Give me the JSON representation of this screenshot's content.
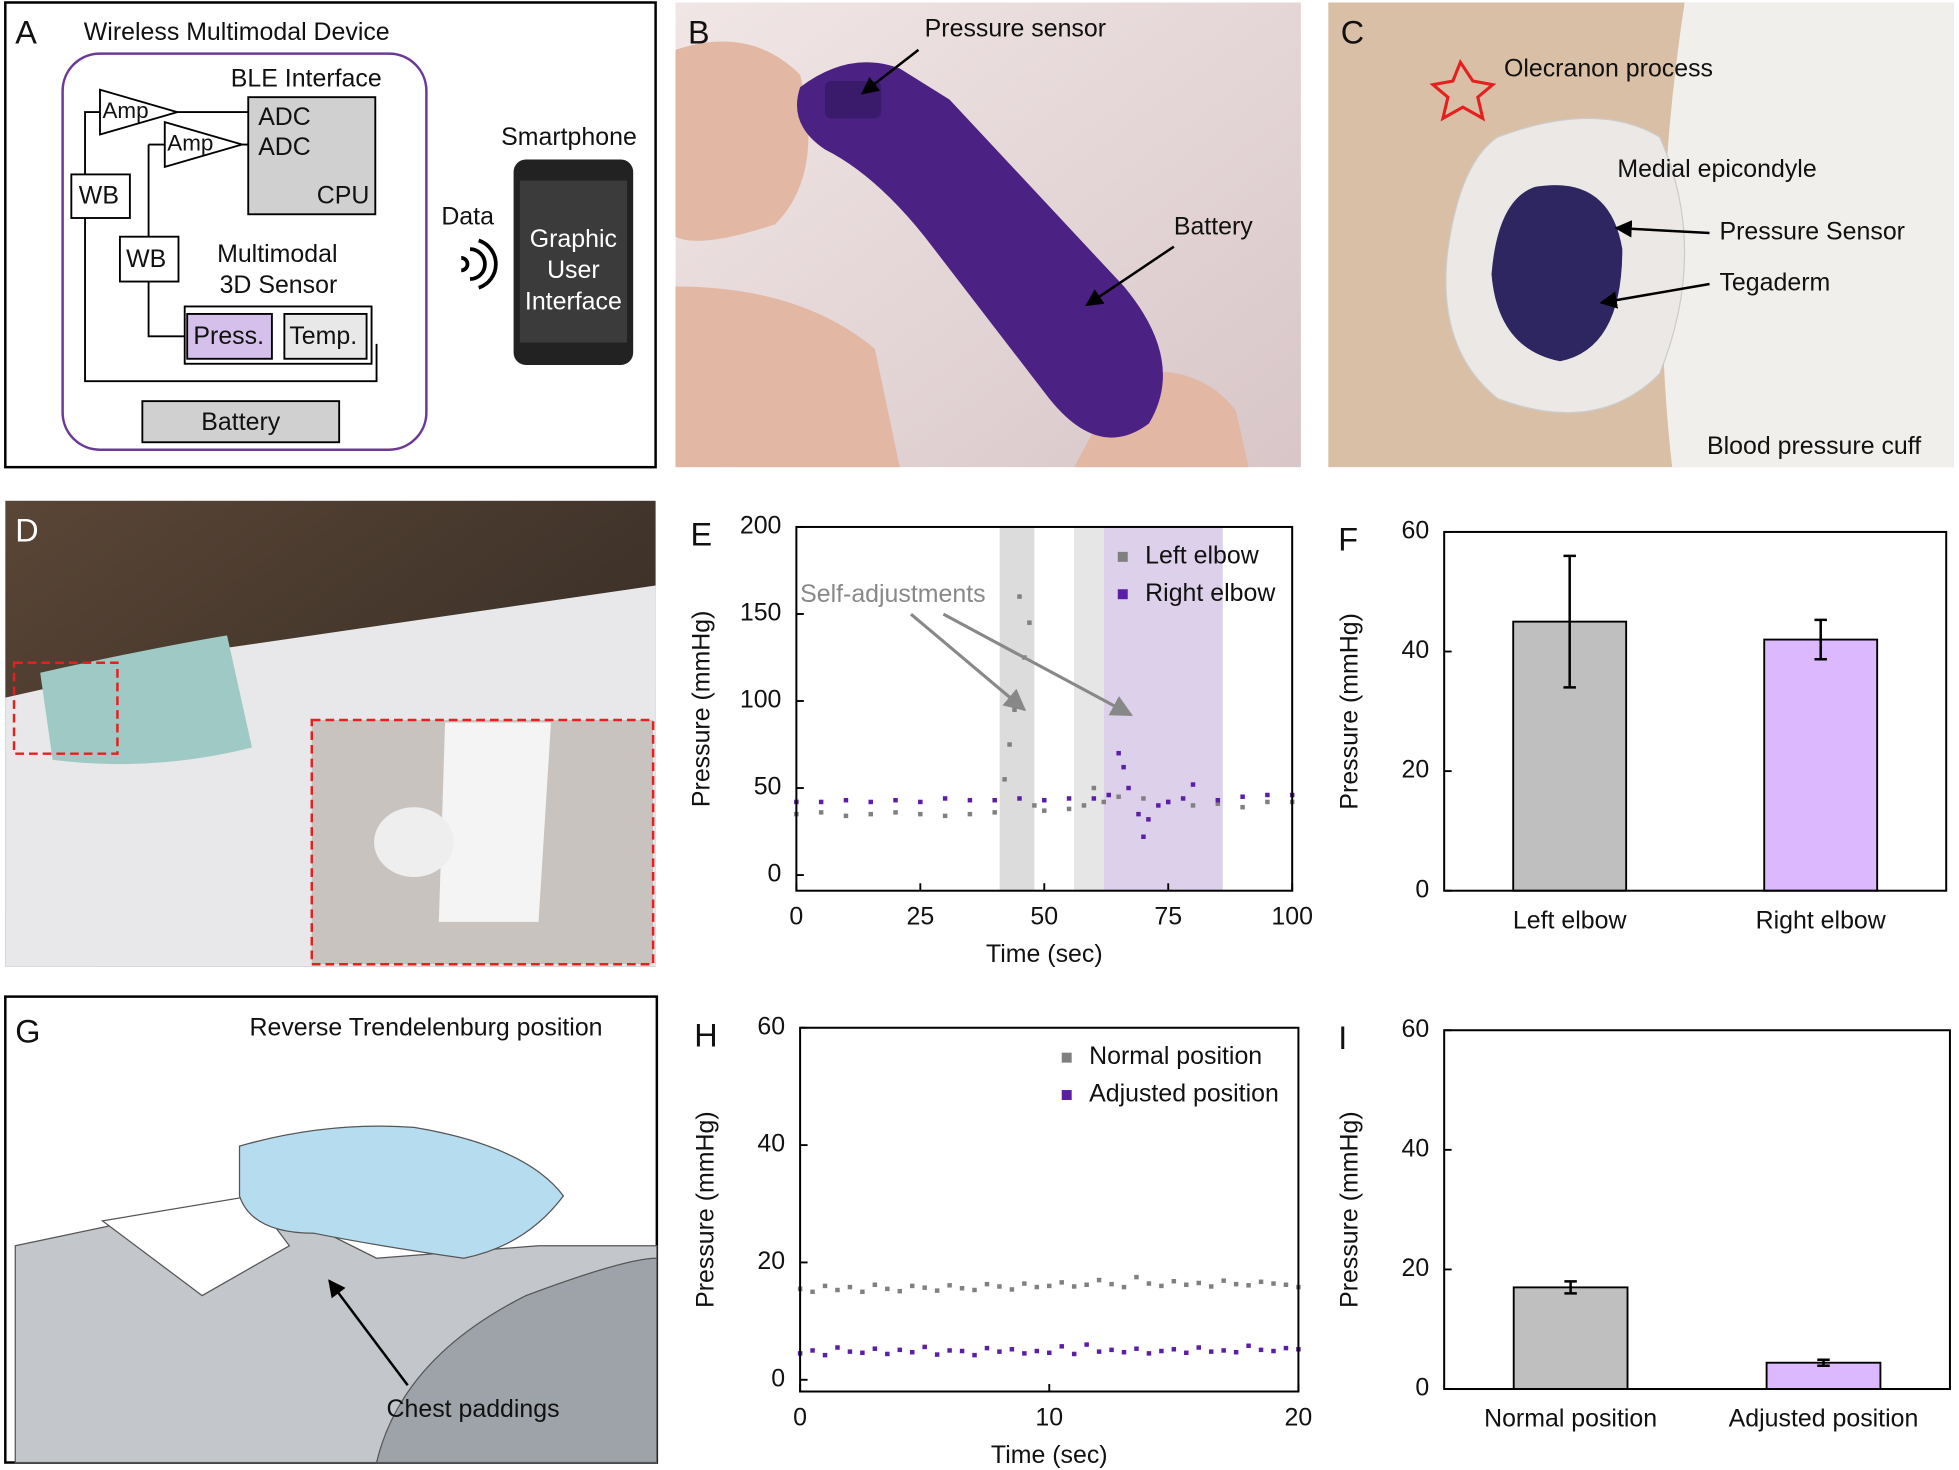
{
  "panels": {
    "A": {
      "letter": "A",
      "title": "Wireless Multimodal Device",
      "ble": "BLE Interface",
      "amp": [
        "Amp",
        "Amp"
      ],
      "adc": [
        "ADC",
        "ADC"
      ],
      "cpu": "CPU",
      "wb": [
        "WB",
        "WB"
      ],
      "sensor": [
        "Multimodal",
        "3D Sensor"
      ],
      "press": "Press.",
      "temp": "Temp.",
      "battery": "Battery",
      "data": "Data",
      "phone_title": "Smartphone",
      "gui": [
        "Graphic",
        "User",
        "Interface"
      ]
    },
    "B": {
      "letter": "B",
      "labels": [
        "Pressure sensor",
        "Battery"
      ]
    },
    "C": {
      "letter": "C",
      "labels": [
        "Olecranon process",
        "Medial epicondyle",
        "Pressure Sensor",
        "Tegaderm",
        "Blood pressure cuff"
      ]
    },
    "D": {
      "letter": "D"
    },
    "G": {
      "letter": "G",
      "title": "Reverse Trendelenburg position",
      "label": "Chest paddings"
    }
  },
  "chart_data": [
    {
      "type": "scatter",
      "panel": "E",
      "x_label": "Time (sec)",
      "y_label": "Pressure (mmHg)",
      "xlim": [
        0,
        100
      ],
      "xticks": [
        0,
        25,
        50,
        75,
        100
      ],
      "ylim": [
        -9,
        200
      ],
      "yticks": [
        0,
        50,
        100,
        150,
        200
      ],
      "legend": "upper right",
      "annotation": "Self-adjustments",
      "shaded_regions": [
        {
          "xmin": 41,
          "xmax": 48,
          "color": "#dcdcdc"
        },
        {
          "xmin": 56,
          "xmax": 62,
          "color": "#e6e6e6"
        },
        {
          "xmin": 62,
          "xmax": 86,
          "color": "#ddd0ea"
        }
      ],
      "series": [
        {
          "name": "Left elbow",
          "color": "#808080",
          "x": [
            0,
            5,
            10,
            15,
            20,
            25,
            30,
            35,
            40,
            42,
            43,
            44,
            45,
            46,
            47,
            48,
            50,
            55,
            58,
            60,
            62,
            65,
            70,
            75,
            80,
            85,
            90,
            95,
            100
          ],
          "values": [
            35,
            36,
            34,
            35,
            36,
            35,
            34,
            35,
            36,
            55,
            75,
            95,
            160,
            125,
            145,
            40,
            37,
            38,
            40,
            50,
            42,
            45,
            44,
            42,
            40,
            41,
            39,
            42,
            42
          ]
        },
        {
          "name": "Right elbow",
          "color": "#5b1fa6",
          "x": [
            0,
            5,
            10,
            15,
            20,
            25,
            30,
            35,
            40,
            45,
            50,
            55,
            60,
            63,
            65,
            66,
            67,
            69,
            70,
            71,
            73,
            75,
            78,
            80,
            85,
            90,
            95,
            100
          ],
          "values": [
            42,
            42,
            43,
            42,
            43,
            42,
            44,
            43,
            43,
            44,
            43,
            44,
            44,
            46,
            70,
            62,
            50,
            35,
            22,
            32,
            40,
            42,
            44,
            52,
            43,
            45,
            46,
            46
          ]
        }
      ]
    },
    {
      "type": "bar",
      "panel": "F",
      "y_label": "Pressure (mmHg)",
      "ylim": [
        0,
        60
      ],
      "yticks": [
        0,
        20,
        40,
        60
      ],
      "categories": [
        "Left elbow",
        "Right elbow"
      ],
      "values": [
        45,
        42
      ],
      "errors": [
        11,
        3.3
      ],
      "colors": [
        "#bfbfbf",
        "#dcb8ff"
      ]
    },
    {
      "type": "scatter",
      "panel": "H",
      "x_label": "Time (sec)",
      "y_label": "Pressure (mmHg)",
      "xlim": [
        0,
        20
      ],
      "xticks": [
        0,
        10,
        20
      ],
      "ylim": [
        -2,
        60
      ],
      "yticks": [
        0,
        20,
        40,
        60
      ],
      "legend": "upper right",
      "x": [
        0,
        0.5,
        1,
        1.5,
        2,
        2.5,
        3,
        3.5,
        4,
        4.5,
        5,
        5.5,
        6,
        6.5,
        7,
        7.5,
        8,
        8.5,
        9,
        9.5,
        10,
        10.5,
        11,
        11.5,
        12,
        12.5,
        13,
        13.5,
        14,
        14.5,
        15,
        15.5,
        16,
        16.5,
        17,
        17.5,
        18,
        18.5,
        19,
        19.5,
        20
      ],
      "series": [
        {
          "name": "Normal position",
          "color": "#808080",
          "values": [
            15.5,
            15,
            16,
            15.3,
            15.8,
            15,
            16.2,
            15.5,
            15.1,
            16,
            15.7,
            15.2,
            16.1,
            15.6,
            15.3,
            16.3,
            15.9,
            15.4,
            16.4,
            15.8,
            16,
            16.6,
            15.9,
            16.2,
            17,
            16.3,
            15.8,
            17.5,
            16.4,
            16,
            16.8,
            16.2,
            16.5,
            15.9,
            16.9,
            16.3,
            16.1,
            16.7,
            16.4,
            16.2,
            15.8
          ]
        },
        {
          "name": "Adjusted position",
          "color": "#5b1fa6",
          "values": [
            4.5,
            5,
            4.2,
            5.5,
            4.8,
            4.6,
            5.3,
            4.4,
            5.1,
            4.7,
            5.6,
            4.3,
            5,
            4.9,
            4.2,
            5.4,
            4.8,
            5.2,
            4.5,
            4.9,
            4.6,
            5.7,
            4.4,
            6,
            4.8,
            5.1,
            4.7,
            5.3,
            4.5,
            4.9,
            5.2,
            4.6,
            5.5,
            4.8,
            5,
            4.7,
            5.8,
            5.1,
            4.9,
            5.4,
            5.2
          ]
        }
      ]
    },
    {
      "type": "bar",
      "panel": "I",
      "y_label": "Pressure (mmHg)",
      "ylim": [
        0,
        60
      ],
      "yticks": [
        0,
        20,
        40,
        60
      ],
      "categories": [
        "Normal position",
        "Adjusted position"
      ],
      "values": [
        17,
        4.4
      ],
      "errors": [
        1,
        0.5
      ],
      "colors": [
        "#bfbfbf",
        "#dcb8ff"
      ]
    }
  ]
}
